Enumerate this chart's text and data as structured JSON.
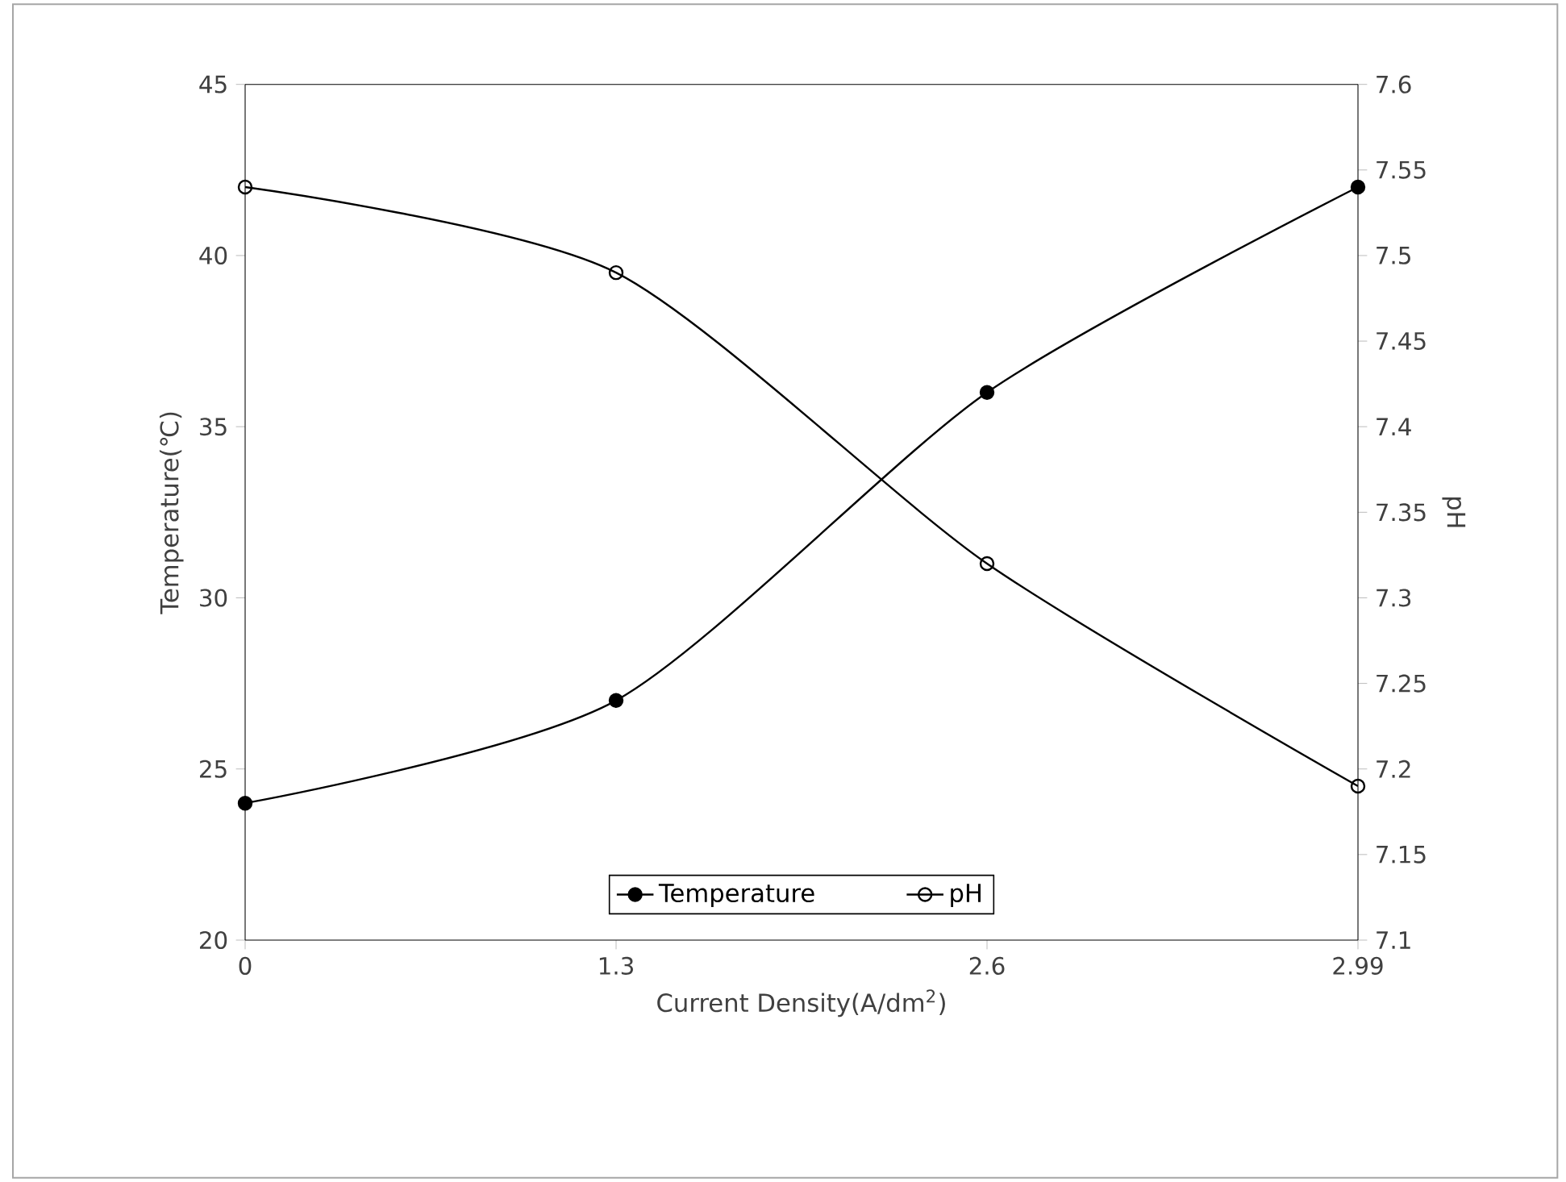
{
  "chart_data": {
    "type": "line",
    "xlabel": "Current Density(A/dm$^{2}$)",
    "ylabel": "Temperature(℃)",
    "y2label": "pH",
    "categories": [
      "0",
      "1.3",
      "2.6",
      "2.99"
    ],
    "series": [
      {
        "name": "Temperature",
        "color": "#000000",
        "marker": "circle",
        "values": [
          24,
          27,
          36,
          42
        ]
      },
      {
        "name": "pH",
        "color": "#000000",
        "marker": "circle open",
        "axis": "y2",
        "values": [
          7.54,
          7.49,
          7.32,
          7.19
        ]
      }
    ],
    "ylim": [
      20,
      45
    ],
    "yticks": [
      20,
      25,
      30,
      35,
      40,
      45
    ],
    "y2lim": [
      7.1,
      7.6
    ],
    "y2ticks": [
      7.1,
      7.15,
      7.2,
      7.25,
      7.3,
      7.35,
      7.4,
      7.45,
      7.5,
      7.55,
      7.6
    ],
    "legend": "bottom",
    "grid": false,
    "line_style": "solid"
  }
}
